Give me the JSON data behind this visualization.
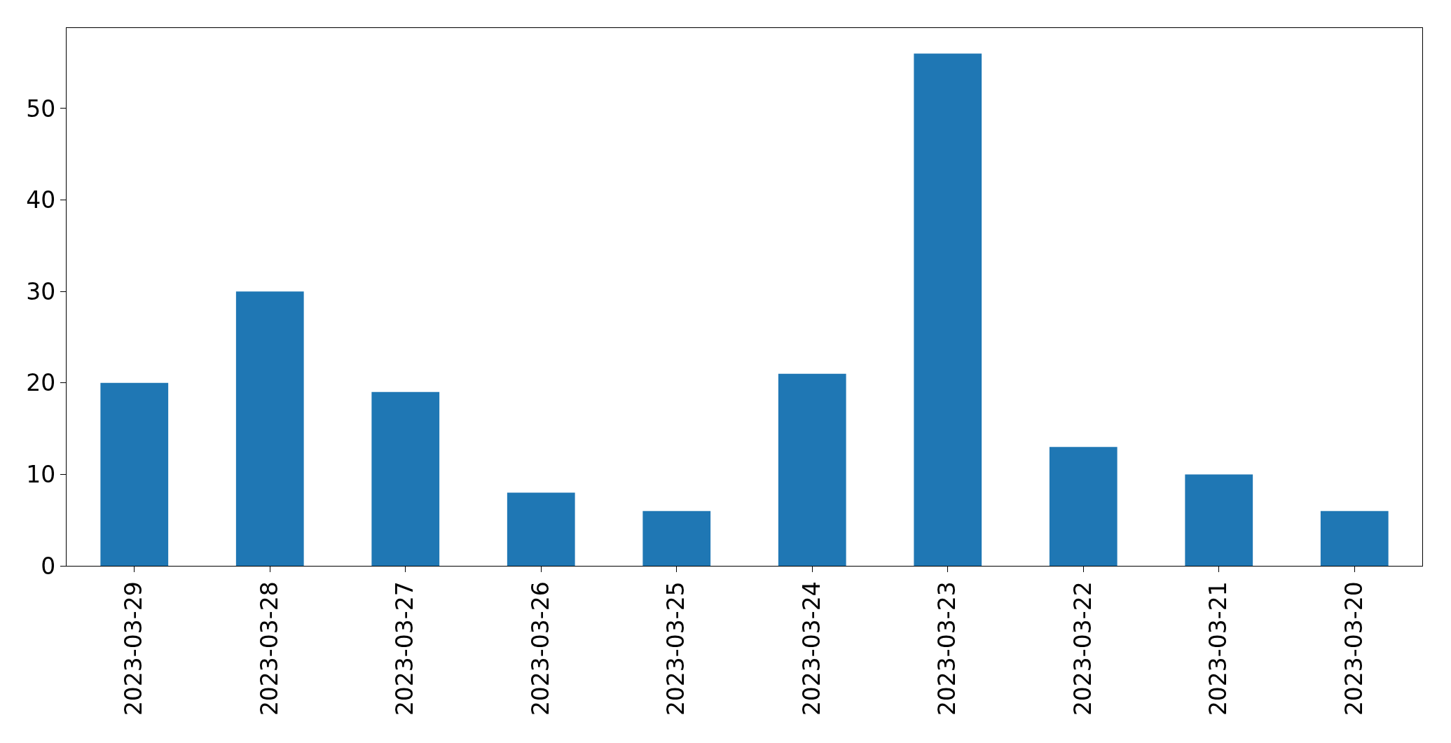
{
  "chart_data": {
    "type": "bar",
    "categories": [
      "2023-03-29",
      "2023-03-28",
      "2023-03-27",
      "2023-03-26",
      "2023-03-25",
      "2023-03-24",
      "2023-03-23",
      "2023-03-22",
      "2023-03-21",
      "2023-03-20"
    ],
    "values": [
      20,
      30,
      19,
      8,
      6,
      21,
      56,
      13,
      10,
      6
    ],
    "color": "#1f77b4",
    "ylim": [
      0,
      58.8
    ],
    "yticks": [
      0,
      10,
      20,
      30,
      40,
      50
    ],
    "grid": false
  }
}
